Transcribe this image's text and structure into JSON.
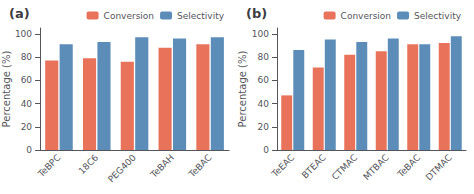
{
  "chart_data": [
    {
      "type": "bar",
      "title": "(a)",
      "categories": [
        "TeBPC",
        "18C6",
        "PEG400",
        "TeBAH",
        "TeBAC"
      ],
      "series": [
        {
          "name": "Conversion",
          "color": "#E8735A",
          "values": [
            77,
            79,
            76,
            88,
            91
          ]
        },
        {
          "name": "Selectivity",
          "color": "#5B8DB8",
          "values": [
            91,
            93,
            97,
            96,
            97
          ]
        }
      ],
      "ylabel": "Percentage (%)",
      "ylim": [
        0,
        105
      ],
      "yticks": [
        0,
        20,
        40,
        60,
        80,
        100
      ],
      "grid": false,
      "legend": "upper right"
    },
    {
      "type": "bar",
      "title": "(b)",
      "categories": [
        "TeEAC",
        "BTEAC",
        "CTMAC",
        "MTBAC",
        "TeBAC",
        "DTMAC"
      ],
      "series": [
        {
          "name": "Conversion",
          "color": "#E8735A",
          "values": [
            47,
            71,
            82,
            85,
            91,
            92
          ]
        },
        {
          "name": "Selectivity",
          "color": "#5B8DB8",
          "values": [
            86,
            95,
            93,
            96,
            91,
            98
          ]
        }
      ],
      "ylabel": "Percentage (%)",
      "ylim": [
        0,
        105
      ],
      "yticks": [
        0,
        20,
        40,
        60,
        80,
        100
      ],
      "grid": false,
      "legend": "upper right"
    }
  ]
}
